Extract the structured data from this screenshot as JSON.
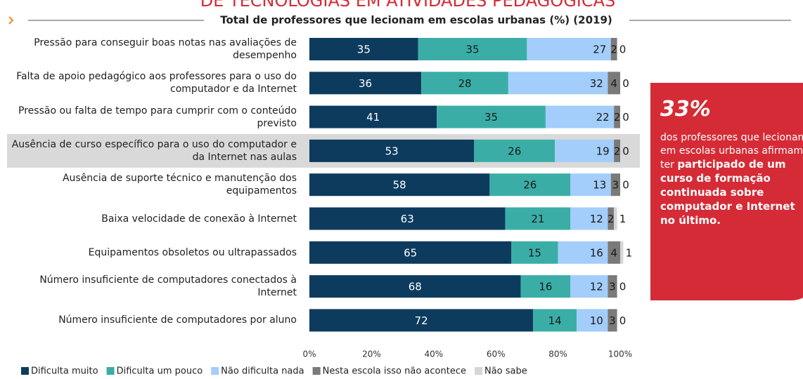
{
  "chart_data": {
    "type": "stacked-bar-horizontal",
    "title": "DE TECNOLOGIAS EM ATIVIDADES PEDAGÓGICAS",
    "subtitle": "Total de professores que lecionam em escolas urbanas (%) (2019)",
    "categories": [
      "Pressão para conseguir boas notas nas avaliações de desempenho",
      "Falta de apoio pedagógico aos professores para o uso do computador e da Internet",
      "Pressão ou falta de tempo para cumprir com o conteúdo previsto",
      "Ausência de curso específico para o uso do computador e da Internet nas aulas",
      "Ausência de suporte técnico e manutenção dos equipamentos",
      "Baixa velocidade de conexão à Internet",
      "Equipamentos obsoletos ou ultrapassados",
      "Número insuficiente de computadores conectados à Internet",
      "Número insuficiente de computadores por aluno"
    ],
    "highlight": 3,
    "series": [
      {
        "name": "Dificulta muito",
        "color": "#0d3b5e",
        "values": [
          35,
          36,
          41,
          53,
          58,
          63,
          65,
          68,
          72
        ]
      },
      {
        "name": "Dificulta um pouco",
        "color": "#3aaea6",
        "values": [
          35,
          28,
          35,
          26,
          26,
          21,
          15,
          16,
          14
        ]
      },
      {
        "name": "Não dificulta nada",
        "color": "#a3cdfb",
        "values": [
          27,
          32,
          22,
          19,
          13,
          12,
          16,
          12,
          10
        ]
      },
      {
        "name": "Nesta escola isso não acontece",
        "color": "#7a7a7a",
        "values": [
          2,
          4,
          2,
          2,
          3,
          2,
          4,
          3,
          3
        ]
      },
      {
        "name": "Não sabe",
        "color": "#d6d6d6",
        "values": [
          0,
          0,
          0,
          0,
          0,
          1,
          1,
          0,
          0
        ]
      }
    ],
    "xlim": [
      0,
      100
    ],
    "xticks": [
      {
        "value": 0,
        "label": "0%"
      },
      {
        "value": 20,
        "label": "20%"
      },
      {
        "value": 40,
        "label": "40%"
      },
      {
        "value": 60,
        "label": "60%"
      },
      {
        "value": 80,
        "label": "80%"
      },
      {
        "value": 100,
        "label": "100%"
      }
    ],
    "callout": {
      "headline": "33%",
      "text": "dos professores que lecionam em escolas urbanas afirmam ter",
      "bold_text": "participado de um curso de formação continuada sobre computador e Internet no último."
    }
  }
}
